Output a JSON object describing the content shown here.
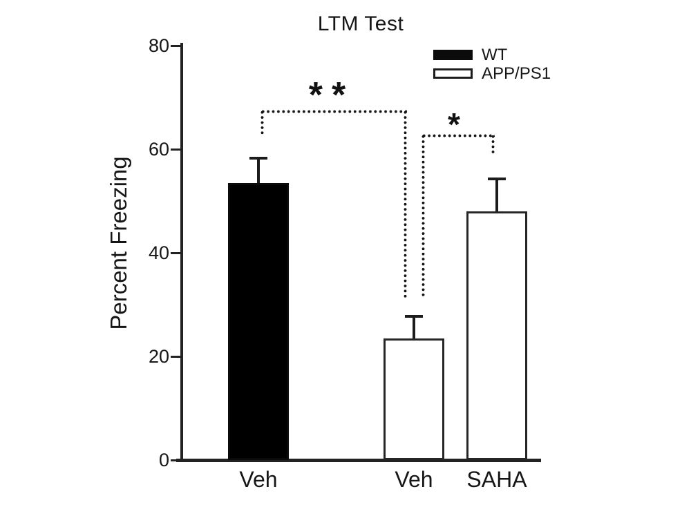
{
  "chart_data": {
    "type": "bar",
    "title": "LTM Test",
    "ylabel": "Percent Freezing",
    "xlabel": "",
    "ylim": [
      0,
      80
    ],
    "yticks": [
      0,
      20,
      40,
      60,
      80
    ],
    "grid": false,
    "legend_position": "top-right",
    "legend": [
      {
        "label": "WT",
        "fill": "#000000"
      },
      {
        "label": "APP/PS1",
        "fill": "#ffffff"
      }
    ],
    "bars": [
      {
        "x_label": "Veh",
        "group": "WT",
        "value": 53.5,
        "error_plus": 5.0,
        "fill": "#000000"
      },
      {
        "x_label": "Veh",
        "group": "APP/PS1",
        "value": 23.5,
        "error_plus": 4.5,
        "fill": "#ffffff"
      },
      {
        "x_label": "SAHA",
        "group": "APP/PS1",
        "value": 48.0,
        "error_plus": 6.5,
        "fill": "#ffffff"
      }
    ],
    "annotations": [
      {
        "label": "**",
        "between": [
          "WT Veh",
          "APP/PS1 Veh"
        ],
        "style": "dotted-bracket"
      },
      {
        "label": "*",
        "between": [
          "APP/PS1 Veh",
          "APP/PS1 SAHA"
        ],
        "style": "dotted-bracket"
      }
    ]
  },
  "colors": {
    "background": "#ffffff",
    "axis": "#222222",
    "bar_black": "#0b0b0b",
    "bar_white_outline": "#262626",
    "error_bar": "#1c1c1c"
  }
}
